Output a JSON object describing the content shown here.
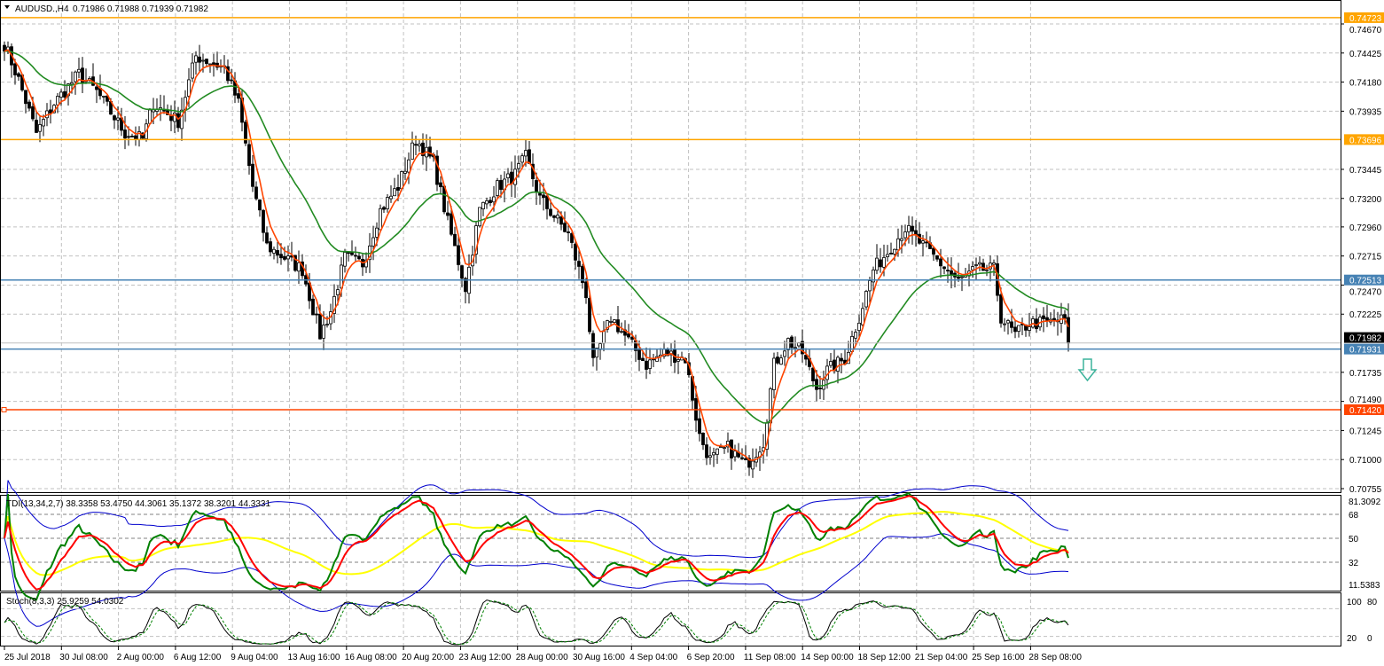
{
  "header": {
    "symbol_label": "AUDUSD.,H4",
    "ohlc": "0.71986 0.71988 0.71939 0.71982",
    "menu_icon": "triangle-down-icon"
  },
  "price_axis": {
    "ticks": [
      "0.74670",
      "0.74425",
      "0.74180",
      "0.73935",
      "0.73445",
      "0.73200",
      "0.72960",
      "0.72715",
      "0.72470",
      "0.72225",
      "0.71735",
      "0.71490",
      "0.71245",
      "0.71000",
      "0.70755"
    ],
    "current_price": "0.71982",
    "min": 0.70755,
    "max": 0.7467
  },
  "levels": [
    {
      "price": 0.74723,
      "label": "0.74723",
      "color": "#FFA500"
    },
    {
      "price": 0.73696,
      "label": "0.73696",
      "color": "#FFA500"
    },
    {
      "price": 0.72513,
      "label": "0.72513",
      "color": "#4682B4"
    },
    {
      "price": 0.71931,
      "label": "0.71931",
      "color": "#4682B4"
    },
    {
      "price": 0.7142,
      "label": "0.71420",
      "color": "#FF4500"
    }
  ],
  "time_axis": [
    "25 Jul 2018",
    "30 Jul 08:00",
    "2 Aug 00:00",
    "6 Aug 12:00",
    "9 Aug 04:00",
    "13 Aug 16:00",
    "16 Aug 08:00",
    "20 Aug 20:00",
    "23 Aug 12:00",
    "28 Aug 00:00",
    "30 Aug 16:00",
    "4 Sep 04:00",
    "6 Sep 20:00",
    "11 Sep 08:00",
    "14 Sep 00:00",
    "18 Sep 12:00",
    "21 Sep 04:00",
    "25 Sep 16:00",
    "28 Sep 08:00"
  ],
  "price_path": [
    [
      0,
      0.745
    ],
    [
      4,
      0.742
    ],
    [
      9,
      0.7375
    ],
    [
      14,
      0.74
    ],
    [
      21,
      0.7425
    ],
    [
      26,
      0.741
    ],
    [
      34,
      0.7375
    ],
    [
      39,
      0.737
    ],
    [
      42,
      0.74
    ],
    [
      49,
      0.7385
    ],
    [
      54,
      0.744
    ],
    [
      62,
      0.743
    ],
    [
      66,
      0.74
    ],
    [
      70,
      0.733
    ],
    [
      74,
      0.728
    ],
    [
      79,
      0.727
    ],
    [
      84,
      0.726
    ],
    [
      89,
      0.7205
    ],
    [
      92,
      0.7225
    ],
    [
      96,
      0.727
    ],
    [
      101,
      0.7265
    ],
    [
      106,
      0.731
    ],
    [
      111,
      0.733
    ],
    [
      116,
      0.737
    ],
    [
      121,
      0.735
    ],
    [
      125,
      0.73
    ],
    [
      130,
      0.7245
    ],
    [
      134,
      0.731
    ],
    [
      139,
      0.733
    ],
    [
      144,
      0.734
    ],
    [
      147,
      0.7355
    ],
    [
      151,
      0.732
    ],
    [
      159,
      0.729
    ],
    [
      164,
      0.724
    ],
    [
      166,
      0.718
    ],
    [
      171,
      0.722
    ],
    [
      176,
      0.72
    ],
    [
      181,
      0.718
    ],
    [
      186,
      0.719
    ],
    [
      192,
      0.7185
    ],
    [
      196,
      0.712
    ],
    [
      199,
      0.71
    ],
    [
      204,
      0.711
    ],
    [
      209,
      0.7095
    ],
    [
      214,
      0.7115
    ],
    [
      217,
      0.718
    ],
    [
      221,
      0.72
    ],
    [
      225,
      0.719
    ],
    [
      229,
      0.716
    ],
    [
      232,
      0.7175
    ],
    [
      237,
      0.7185
    ],
    [
      241,
      0.722
    ],
    [
      245,
      0.726
    ],
    [
      249,
      0.7275
    ],
    [
      254,
      0.7295
    ],
    [
      259,
      0.728
    ],
    [
      264,
      0.7265
    ],
    [
      269,
      0.725
    ],
    [
      274,
      0.726
    ],
    [
      279,
      0.726
    ],
    [
      281,
      0.722
    ],
    [
      285,
      0.7205
    ],
    [
      289,
      0.7215
    ],
    [
      294,
      0.7215
    ],
    [
      299,
      0.7218
    ],
    [
      300,
      0.7198
    ]
  ],
  "colors": {
    "bull": "#000000",
    "fast_ma": "#FF4500",
    "slow_ma": "#228B22",
    "signal_arrow": "#3CB39B"
  },
  "signal_icon": "down-arrow-icon",
  "tdi": {
    "label": "TDI(13,34,2,7) 38.3358 53.4750 44.3061 35.1372 38.3201 44.3331",
    "axis": [
      "81.3092",
      "68",
      "50",
      "32",
      "11.5383"
    ],
    "colors": {
      "band": "#0000CD",
      "rsi": "#008000",
      "signal": "#FF0000",
      "base": "#FFFF00"
    }
  },
  "stoch": {
    "label": "Stoch(8,3,3) 25.9259 54.0302",
    "axis": [
      "100",
      "80",
      "20",
      "0"
    ]
  }
}
